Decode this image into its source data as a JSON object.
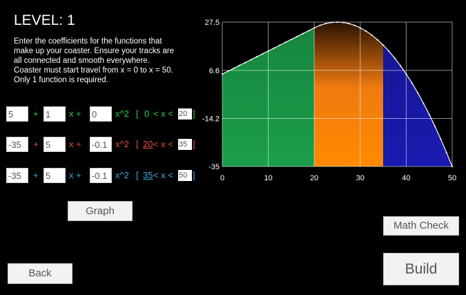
{
  "level_title": "LEVEL: 1",
  "instructions": [
    "Enter the coefficients for the functions that",
    "make up your coaster. Ensure your tracks are",
    "all connected and smooth everywhere.",
    "Coaster must start travel from x = 0 to x = 50.",
    "Only 1 function is required."
  ],
  "functions": [
    {
      "c0": "5",
      "c1": "1",
      "c2": "0",
      "lo": "0",
      "hi": "20",
      "color": "#2ecc40"
    },
    {
      "c0": "-35",
      "c1": "5",
      "c2": "-0.1",
      "lo": "20",
      "hi": "35",
      "color": "#e05040"
    },
    {
      "c0": "-35",
      "c1": "5",
      "c2": "-0.1",
      "lo": "35",
      "hi": "50",
      "color": "#3aa8e0"
    }
  ],
  "ops": {
    "plus": "+",
    "x_plus": "x +",
    "x_sq": "x^2",
    "bracket_open": "[",
    "bracket_close": "]",
    "lt": "<",
    "lt_x_lt": "< x <"
  },
  "buttons": {
    "graph": "Graph",
    "math_check": "Math Check",
    "back": "Back",
    "build": "Build"
  },
  "chart_data": {
    "type": "area",
    "y_tick_labels": [
      "27.5",
      "6.6",
      "-14.2",
      "-35"
    ],
    "x_tick_labels": [
      "0",
      "10",
      "20",
      "30",
      "40",
      "50"
    ],
    "xlim": [
      0,
      50
    ],
    "ylim": [
      -35,
      27.5
    ],
    "grid": true,
    "segments": [
      {
        "from": 0,
        "to": 20,
        "c0": 5,
        "c1": 1,
        "c2": 0,
        "color": "#1a9e4a"
      },
      {
        "from": 20,
        "to": 35,
        "c0": -35,
        "c1": 5,
        "c2": -0.1,
        "color": "#f07a10"
      },
      {
        "from": 35,
        "to": 50,
        "c0": -35,
        "c1": 5,
        "c2": -0.1,
        "color": "#1a1ab0"
      }
    ]
  }
}
